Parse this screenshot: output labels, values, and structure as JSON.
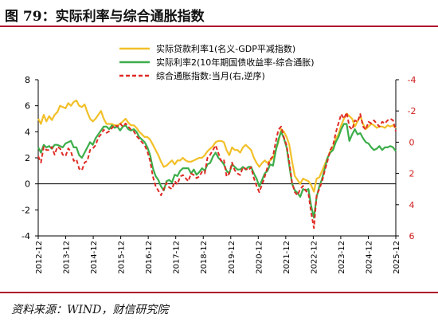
{
  "header": {
    "title": "图 79：实际利率与综合通胀指数"
  },
  "footer": {
    "source": "资料来源：WIND，财信研究院"
  },
  "chart_data": {
    "type": "line",
    "x_ticks": [
      "2012-12",
      "2013-12",
      "2014-12",
      "2015-12",
      "2016-12",
      "2017-12",
      "2018-12",
      "2019-12",
      "2020-12",
      "2021-12",
      "2022-12",
      "2023-12",
      "2024-12",
      "2025-12"
    ],
    "y_left": {
      "range": [
        -4,
        8
      ],
      "ticks": [
        "8",
        "6",
        "4",
        "2",
        "0",
        "-2",
        "-4"
      ]
    },
    "y_right": {
      "range": [
        6,
        -4
      ],
      "reversed": true,
      "ticks": [
        "-4",
        "-2",
        "0",
        "2",
        "4",
        "6"
      ],
      "color": "#d01c1c"
    },
    "legend_position": "top-center",
    "series": [
      {
        "name": "实际贷款利率1(名义-GDP平减指数)",
        "color": "#f2c029",
        "axis": "left",
        "dash": "solid",
        "values": [
          5.0,
          4.6,
          5.3,
          4.8,
          5.2,
          4.9,
          5.3,
          5.5,
          6.0,
          5.9,
          5.8,
          6.2,
          6.0,
          6.3,
          6.4,
          6.0,
          5.9,
          6.1,
          5.5,
          5.0,
          4.8,
          5.0,
          5.3,
          5.6,
          5.0,
          4.6,
          4.6,
          4.6,
          4.5,
          4.5,
          4.6,
          4.8,
          5.0,
          4.7,
          4.5,
          4.5,
          4.3,
          4.0,
          3.8,
          3.6,
          3.6,
          3.4,
          3.0,
          2.6,
          2.2,
          1.7,
          1.3,
          1.4,
          1.6,
          1.8,
          1.5,
          1.8,
          1.8,
          2.0,
          1.8,
          1.7,
          1.7,
          1.8,
          1.9,
          2.0,
          2.0,
          2.2,
          2.5,
          2.7,
          2.9,
          3.2,
          3.3,
          3.3,
          3.2,
          2.6,
          2.2,
          2.8,
          2.6,
          2.6,
          2.4,
          2.8,
          3.0,
          2.8,
          2.6,
          2.0,
          1.6,
          1.3,
          1.6,
          1.8,
          1.6,
          1.8,
          2.0,
          2.6,
          3.2,
          4.2,
          4.0,
          3.6,
          3.0,
          1.7,
          0.6,
          0.3,
          0.0,
          0.4,
          0.3,
          0.2,
          -0.1,
          -0.6,
          0.4,
          0.5,
          1.0,
          1.5,
          2.0,
          2.5,
          2.8,
          3.5,
          3.8,
          4.5,
          5.0,
          5.4,
          5.2,
          5.0,
          4.4,
          4.8,
          5.2,
          4.6,
          4.2,
          4.4,
          4.6,
          4.5,
          4.3,
          4.4,
          4.4,
          4.3,
          4.5,
          4.4,
          4.5,
          4.3
        ]
      },
      {
        "name": "实际利率2(10年期国债收益率-综合通胀)",
        "color": "#3cae4a",
        "axis": "left",
        "dash": "solid",
        "values": [
          2.8,
          2.4,
          3.0,
          2.8,
          2.9,
          2.7,
          3.0,
          3.0,
          2.9,
          2.8,
          3.1,
          3.2,
          3.3,
          2.8,
          2.8,
          2.2,
          2.0,
          2.4,
          2.8,
          3.2,
          3.0,
          3.5,
          3.8,
          4.1,
          4.4,
          4.4,
          4.2,
          4.5,
          4.3,
          4.4,
          4.1,
          4.4,
          4.5,
          4.2,
          4.1,
          4.2,
          4.0,
          3.6,
          3.4,
          3.2,
          2.8,
          2.2,
          1.2,
          0.6,
          0.3,
          -0.2,
          -0.5,
          0.2,
          0.3,
          0.1,
          0.7,
          0.6,
          1.0,
          1.2,
          1.2,
          1.2,
          0.8,
          1.1,
          0.7,
          0.9,
          1.2,
          1.0,
          1.5,
          1.6,
          2.1,
          2.4,
          2.0,
          1.8,
          1.5,
          1.0,
          0.8,
          1.5,
          1.3,
          1.1,
          1.1,
          1.3,
          1.1,
          1.3,
          1.3,
          0.8,
          0.4,
          -0.2,
          0.3,
          0.8,
          1.0,
          1.5,
          1.4,
          2.5,
          3.4,
          4.0,
          3.5,
          2.8,
          1.4,
          0.0,
          -0.5,
          -0.7,
          -1.0,
          -0.4,
          -0.5,
          -0.4,
          -1.7,
          -2.6,
          -1.0,
          -0.2,
          0.4,
          1.2,
          2.0,
          2.4,
          2.6,
          3.2,
          3.6,
          4.2,
          4.6,
          4.6,
          3.3,
          3.8,
          4.2,
          3.8,
          3.9,
          3.5,
          3.2,
          3.1,
          2.8,
          2.6,
          2.7,
          2.9,
          2.6,
          2.8,
          2.8,
          2.9,
          2.8,
          2.5
        ]
      },
      {
        "name": "综合通胀指数:当月(右,逆序)",
        "color": "#e02b24",
        "axis": "right",
        "dash": "dashed",
        "values": [
          0.9,
          1.3,
          0.3,
          0.5,
          0.5,
          0.3,
          0.8,
          0.3,
          0.4,
          0.8,
          0.9,
          0.4,
          0.6,
          1.2,
          1.1,
          1.7,
          1.8,
          1.3,
          1.2,
          0.5,
          0.4,
          0.2,
          -0.3,
          -0.5,
          -0.8,
          -0.6,
          -0.7,
          -0.9,
          -1.1,
          -1.0,
          -1.2,
          -1.0,
          -1.2,
          -1.0,
          -0.8,
          -0.7,
          -0.4,
          -0.2,
          0.0,
          0.2,
          0.6,
          1.2,
          2.2,
          2.8,
          3.1,
          3.4,
          3.0,
          2.6,
          2.9,
          3.0,
          2.5,
          2.7,
          2.2,
          2.1,
          2.3,
          2.5,
          2.0,
          2.1,
          2.3,
          2.2,
          1.9,
          2.0,
          1.0,
          0.8,
          0.5,
          0.2,
          0.7,
          1.2,
          1.1,
          2.2,
          2.0,
          1.3,
          1.8,
          2.0,
          2.1,
          1.6,
          1.7,
          1.8,
          1.6,
          2.3,
          2.8,
          3.2,
          2.7,
          2.2,
          1.6,
          1.1,
          0.9,
          0.0,
          -0.8,
          -1.0,
          -0.3,
          0.2,
          1.3,
          2.6,
          3.2,
          3.4,
          3.0,
          2.8,
          3.1,
          3.3,
          4.5,
          5.5,
          3.4,
          3.0,
          2.5,
          1.8,
          1.2,
          0.5,
          0.2,
          -0.6,
          -1.2,
          -1.8,
          -1.5,
          -1.9,
          -1.0,
          -0.8,
          -1.4,
          -1.3,
          -1.8,
          -1.0,
          -0.8,
          -1.3,
          -1.2,
          -1.4,
          -1.2,
          -1.0,
          -1.3,
          -1.2,
          -1.4,
          -1.5,
          -1.4,
          -0.7
        ]
      }
    ]
  }
}
